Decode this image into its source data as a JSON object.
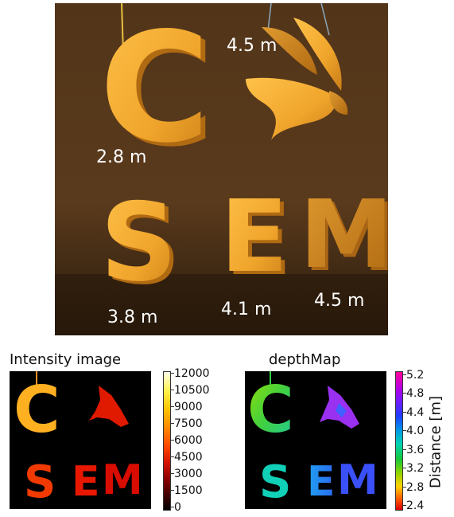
{
  "photo": {
    "labels": {
      "c": "2.8 m",
      "bird": "4.5 m",
      "s": "3.8 m",
      "e": "4.1 m",
      "m": "4.5 m"
    },
    "letters": [
      "C",
      "S",
      "E",
      "M"
    ]
  },
  "intensity": {
    "title": "Intensity image",
    "letters": [
      "C",
      "S",
      "E",
      "M"
    ],
    "colorbar_ticks": [
      "12000",
      "10500",
      "9000",
      "7500",
      "6000",
      "4500",
      "3000",
      "1500",
      "0"
    ]
  },
  "depth": {
    "title": "depthMap",
    "letters": [
      "C",
      "S",
      "E",
      "M"
    ],
    "colorbar_ticks": [
      "5.2",
      "4.8",
      "4.4",
      "4.0",
      "3.6",
      "3.2",
      "2.8",
      "2.4"
    ],
    "axis_label": "Distance [m]"
  },
  "colors": {
    "letter_wood": "#f0a52c",
    "photo_bg": "#523519",
    "panel_bg": "#000000"
  }
}
